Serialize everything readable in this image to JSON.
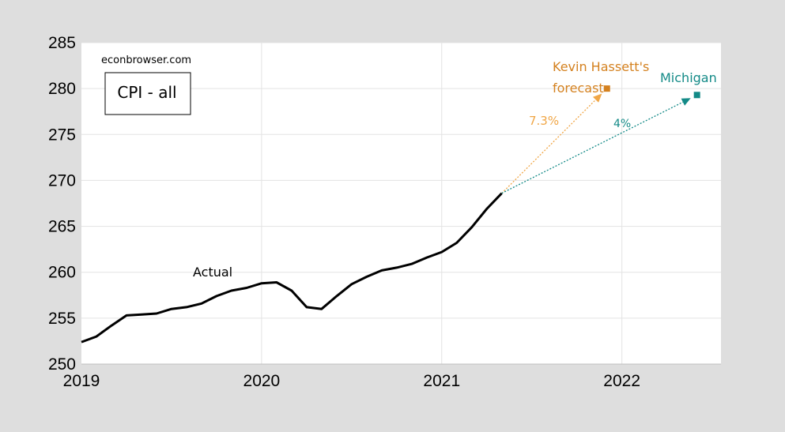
{
  "chart_data": {
    "type": "line",
    "title": "",
    "xlabel": "",
    "ylabel": "",
    "source_label": "econbrowser.com",
    "legend_label": "CPI - all",
    "grid": true,
    "xlim": [
      2019.0,
      2022.55
    ],
    "ylim": [
      250,
      285
    ],
    "x_ticks": [
      {
        "value": 2019,
        "label": "2019"
      },
      {
        "value": 2020,
        "label": "2020"
      },
      {
        "value": 2021,
        "label": "2021"
      },
      {
        "value": 2022,
        "label": "2022"
      }
    ],
    "y_ticks": [
      {
        "value": 250,
        "label": "250"
      },
      {
        "value": 255,
        "label": "255"
      },
      {
        "value": 260,
        "label": "260"
      },
      {
        "value": 265,
        "label": "265"
      },
      {
        "value": 270,
        "label": "270"
      },
      {
        "value": 275,
        "label": "275"
      },
      {
        "value": 280,
        "label": "280"
      },
      {
        "value": 285,
        "label": "285"
      }
    ],
    "series": [
      {
        "name": "Actual",
        "color": "#000000",
        "x": [
          2019.0,
          2019.083,
          2019.167,
          2019.25,
          2019.333,
          2019.417,
          2019.5,
          2019.583,
          2019.667,
          2019.75,
          2019.833,
          2019.917,
          2020.0,
          2020.083,
          2020.167,
          2020.25,
          2020.333,
          2020.417,
          2020.5,
          2020.583,
          2020.667,
          2020.75,
          2020.833,
          2020.917,
          2021.0,
          2021.083,
          2021.167,
          2021.25,
          2021.333
        ],
        "values": [
          252.4,
          253.0,
          254.2,
          255.3,
          255.4,
          255.5,
          256.0,
          256.2,
          256.6,
          257.4,
          258.0,
          258.3,
          258.8,
          258.9,
          258.0,
          256.2,
          256.0,
          257.4,
          258.7,
          259.5,
          260.2,
          260.5,
          260.9,
          261.6,
          262.2,
          263.2,
          264.9,
          266.9,
          268.6
        ]
      }
    ],
    "projections": [
      {
        "name": "Kevin Hassett's forecast",
        "label_lines": [
          "Kevin Hassett's",
          "forecast"
        ],
        "rate_label": "7.3%",
        "color": "#d4811f",
        "line_color": "#f0a646",
        "start": {
          "x": 2021.333,
          "y": 268.6
        },
        "end": {
          "x": 2021.917,
          "y": 280.0
        }
      },
      {
        "name": "Michigan",
        "label_lines": [
          "Michigan"
        ],
        "rate_label": "4%",
        "color": "#138a87",
        "line_color": "#138a87",
        "start": {
          "x": 2021.333,
          "y": 268.6
        },
        "end": {
          "x": 2022.417,
          "y": 279.3
        }
      }
    ]
  }
}
